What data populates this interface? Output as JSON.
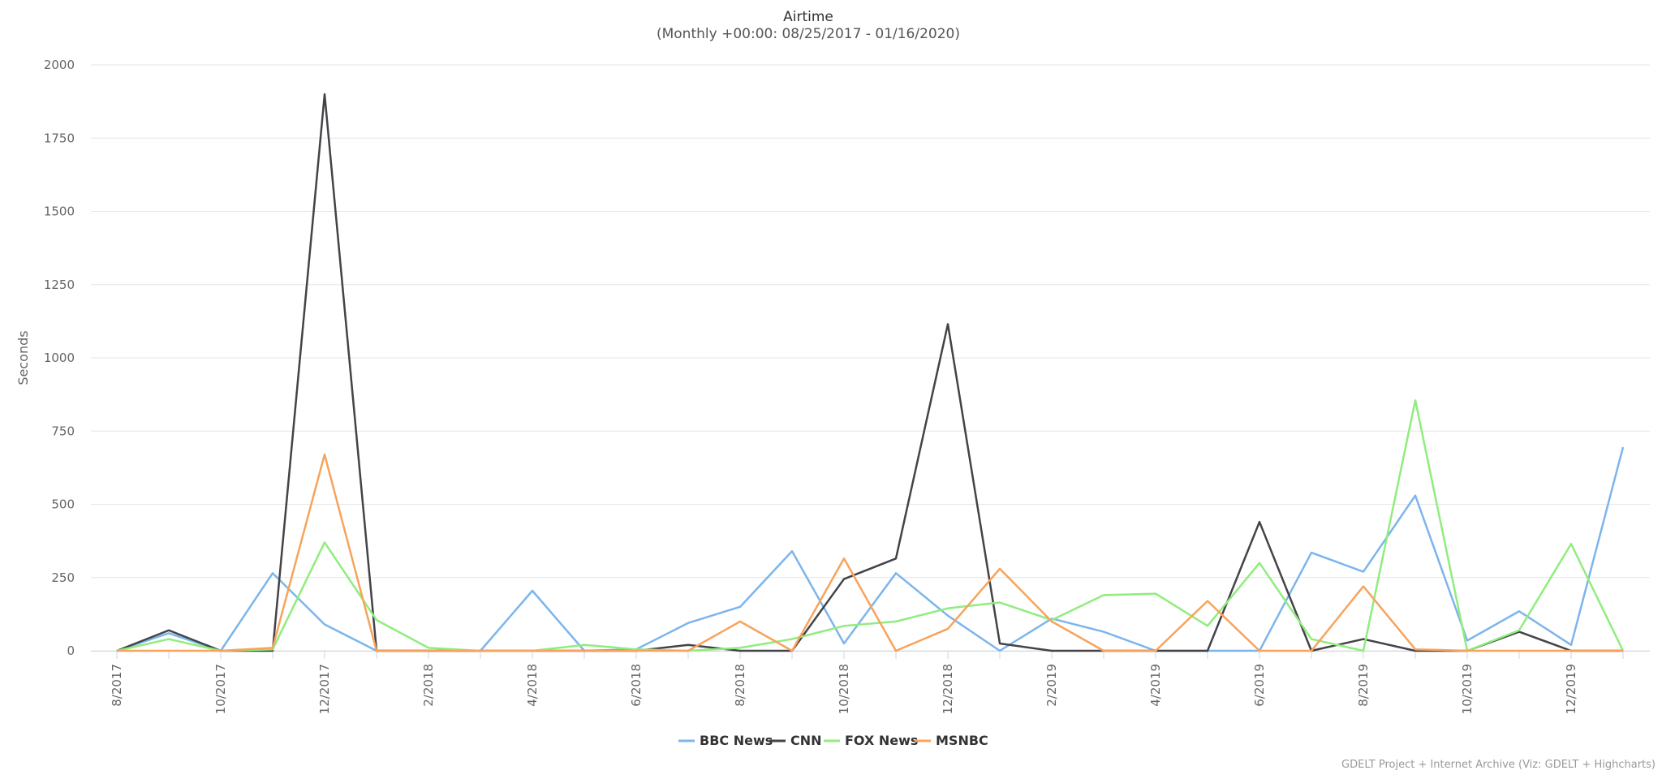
{
  "chart_data": {
    "type": "line",
    "title": "Airtime",
    "subtitle": "(Monthly +00:00: 08/25/2017 - 01/16/2020)",
    "y_label": "Seconds",
    "credits": "GDELT Project + Internet Archive (Viz: GDELT + Highcharts)",
    "categories": [
      "8/2017",
      null,
      "10/2017",
      null,
      "12/2017",
      null,
      "2/2018",
      null,
      "4/2018",
      null,
      "6/2018",
      null,
      "8/2018",
      null,
      "10/2018",
      null,
      "12/2018",
      null,
      "2/2019",
      null,
      "4/2019",
      null,
      "6/2019",
      null,
      "8/2019",
      null,
      "10/2019",
      null,
      "12/2019",
      null
    ],
    "ylim": [
      0,
      2000
    ],
    "yticks": [
      0,
      250,
      500,
      750,
      1000,
      1250,
      1500,
      1750,
      2000
    ],
    "grid": true,
    "legend": "bottom",
    "series": [
      {
        "name": "BBC News",
        "color": "#7cb5ec",
        "values": [
          0,
          60,
          0,
          265,
          90,
          0,
          0,
          0,
          205,
          0,
          5,
          95,
          150,
          340,
          25,
          265,
          120,
          0,
          110,
          65,
          0,
          0,
          0,
          335,
          270,
          530,
          35,
          135,
          20,
          695
        ]
      },
      {
        "name": "CNN",
        "color": "#434348",
        "values": [
          0,
          70,
          0,
          0,
          1900,
          0,
          0,
          0,
          0,
          0,
          0,
          20,
          0,
          0,
          245,
          315,
          1115,
          25,
          0,
          0,
          0,
          0,
          440,
          0,
          40,
          0,
          0,
          65,
          0,
          0
        ]
      },
      {
        "name": "FOX News",
        "color": "#90ed7d",
        "values": [
          0,
          40,
          0,
          5,
          370,
          105,
          10,
          0,
          0,
          20,
          5,
          0,
          10,
          40,
          85,
          100,
          145,
          165,
          105,
          190,
          195,
          85,
          300,
          40,
          0,
          855,
          0,
          70,
          365,
          0
        ]
      },
      {
        "name": "MSNBC",
        "color": "#f7a35c",
        "values": [
          0,
          0,
          0,
          10,
          670,
          0,
          0,
          0,
          0,
          0,
          0,
          0,
          100,
          0,
          315,
          0,
          75,
          280,
          100,
          0,
          0,
          170,
          0,
          0,
          220,
          5,
          0,
          0,
          0,
          0
        ]
      }
    ]
  }
}
